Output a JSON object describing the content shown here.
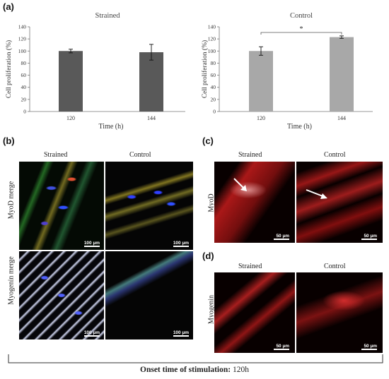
{
  "panels": {
    "a": "(a)",
    "b": "(b)",
    "c": "(c)",
    "d": "(d)"
  },
  "chart_data": [
    {
      "type": "bar",
      "title": "Strained",
      "categories": [
        "120",
        "144"
      ],
      "values": [
        100,
        98
      ],
      "errors": [
        3,
        13
      ],
      "xlabel": "Time (h)",
      "ylabel": "Cell proliferation (%)",
      "ylim": [
        0,
        140
      ],
      "yticks": [
        "0",
        "20",
        "40",
        "60",
        "80",
        "100",
        "120",
        "140"
      ],
      "color": "#595959"
    },
    {
      "type": "bar",
      "title": "Control",
      "categories": [
        "120",
        "144"
      ],
      "values": [
        100,
        123
      ],
      "errors": [
        7,
        2
      ],
      "xlabel": "Time (h)",
      "ylabel": "Cell proliferation (%)",
      "ylim": [
        0,
        140
      ],
      "yticks": [
        "0",
        "20",
        "40",
        "60",
        "80",
        "100",
        "120",
        "140"
      ],
      "color": "#a8a8a8",
      "significance": "*"
    }
  ],
  "b": {
    "col_strained": "Strained",
    "col_control": "Control",
    "row1": "MyoD merge",
    "row2": "Myogenin merge",
    "scale": "100 µm"
  },
  "c": {
    "col_strained": "Strained",
    "col_control": "Control",
    "row": "MyoD",
    "scale": "50 µm"
  },
  "d": {
    "col_strained": "Strained",
    "col_control": "Control",
    "row": "Myogenin",
    "scale": "50 µm"
  },
  "footer": {
    "bold": "Onset time of stimulation:",
    "value": " 120h"
  }
}
